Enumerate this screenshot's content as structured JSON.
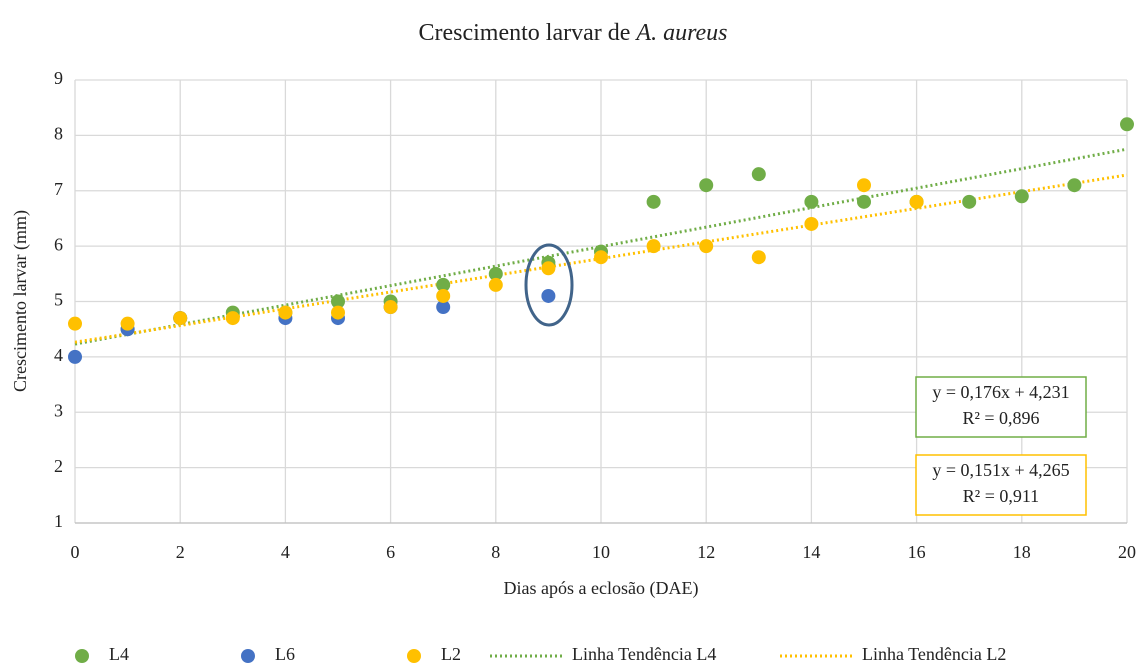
{
  "chart_data": {
    "type": "scatter",
    "title": {
      "text": "Crescimento larvar de",
      "italic": "A. aureus"
    },
    "x_label": "Dias após a eclosão (DAE)",
    "y_label": "Crescimento larvar (mm)",
    "xlim": [
      0,
      20
    ],
    "xticks": [
      0,
      2,
      4,
      6,
      8,
      10,
      12,
      14,
      16,
      18,
      20
    ],
    "ylim": [
      1,
      9
    ],
    "yticks": [
      1,
      2,
      3,
      4,
      5,
      6,
      7,
      8,
      9
    ],
    "grid": true,
    "legend": "bottom",
    "series": [
      {
        "name": "L4",
        "color": "#70ad47",
        "x": [
          1,
          2,
          3,
          4,
          5,
          6,
          7,
          8,
          9,
          10,
          11,
          12,
          13,
          14,
          15,
          16,
          17,
          18,
          19,
          20
        ],
        "values": [
          4.5,
          4.7,
          4.8,
          4.8,
          5.0,
          5.0,
          5.3,
          5.5,
          5.7,
          5.9,
          6.8,
          7.1,
          7.3,
          6.8,
          6.8,
          6.8,
          6.8,
          6.9,
          7.1,
          8.2
        ]
      },
      {
        "name": "L6",
        "color": "#4472c4",
        "x": [
          0,
          1,
          2,
          4,
          5,
          6,
          7,
          9
        ],
        "values": [
          4.0,
          4.5,
          4.7,
          4.7,
          4.7,
          4.9,
          4.9,
          5.1
        ]
      },
      {
        "name": "L2",
        "color": "#ffc000",
        "x": [
          0,
          1,
          2,
          3,
          4,
          5,
          6,
          7,
          8,
          9,
          10,
          11,
          12,
          13,
          14,
          15,
          16
        ],
        "values": [
          4.6,
          4.6,
          4.7,
          4.7,
          4.8,
          4.8,
          4.9,
          5.1,
          5.3,
          5.6,
          5.8,
          6.0,
          6.0,
          5.8,
          6.4,
          7.1,
          6.8
        ]
      }
    ],
    "trendlines": [
      {
        "name": "Linha Tendência L4",
        "color": "#70ad47",
        "slope": 0.176,
        "intercept": 4.231,
        "equation": "y = 0,176x + 4,231",
        "r2": "R² = 0,896"
      },
      {
        "name": "Linha Tendência L2",
        "color": "#ffc000",
        "slope": 0.151,
        "intercept": 4.265,
        "equation": "y = 0,151x + 4,265",
        "r2": "R² = 0,911"
      }
    ]
  }
}
